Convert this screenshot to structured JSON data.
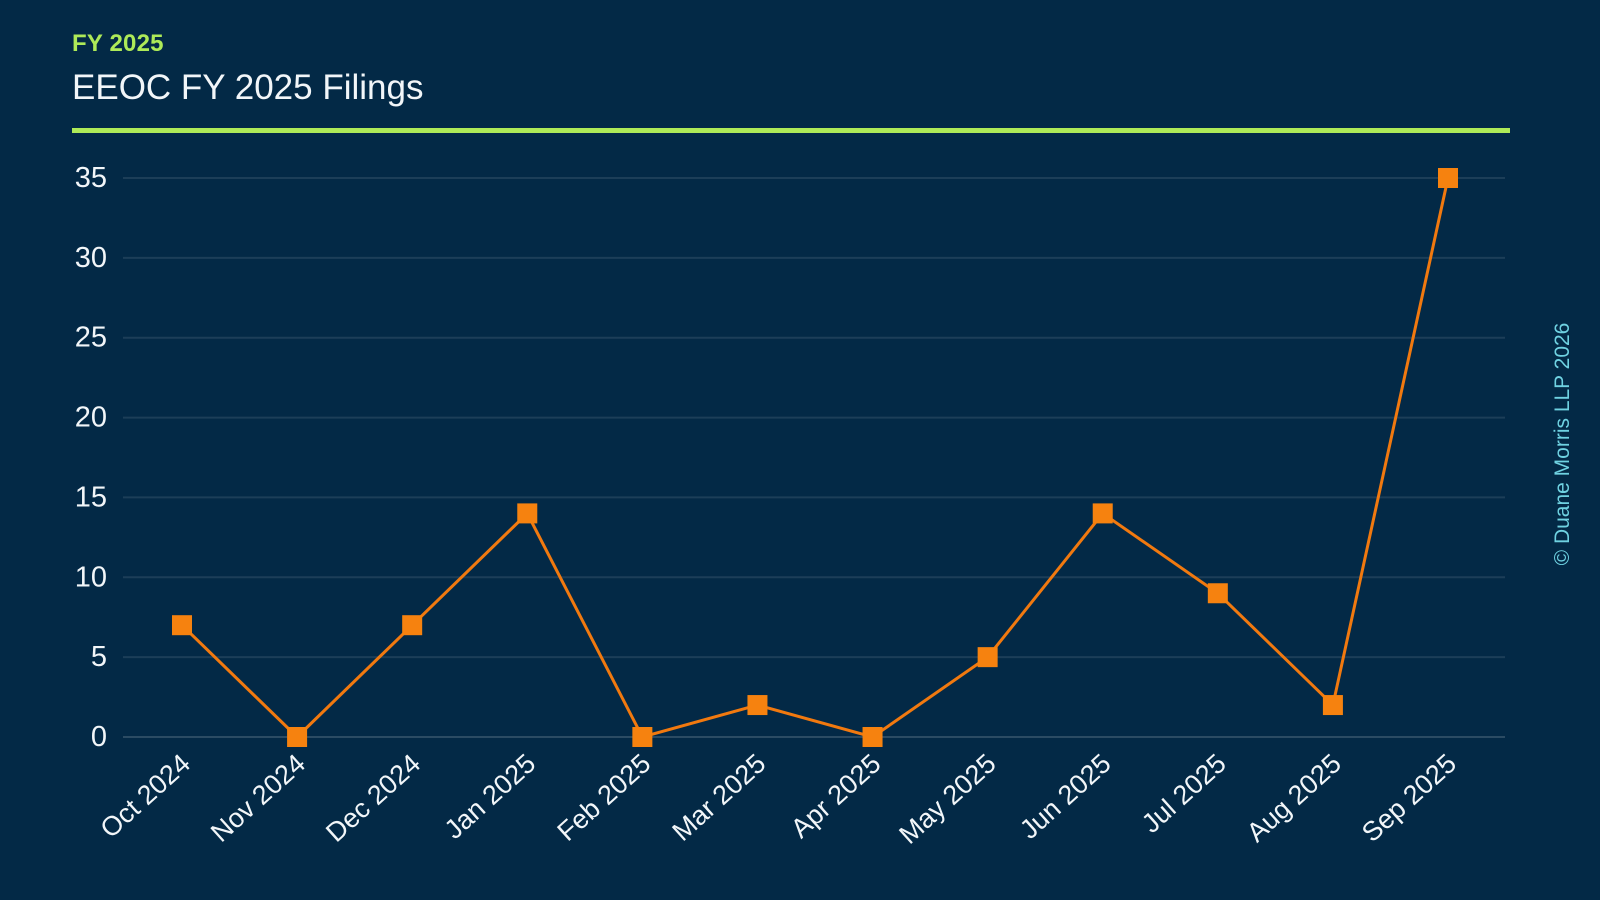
{
  "header": {
    "eyebrow": "FY 2025",
    "title": "EEOC FY 2025 Filings"
  },
  "watermark": "© Duane Morris LLP 2026",
  "colors": {
    "background": "#032946",
    "accent_green": "#aeea58",
    "line_orange": "#f1790f",
    "marker_orange": "#f6820f",
    "text_white": "#f2f6f9",
    "gridline": "rgba(255,255,255,0.10)",
    "zero_line": "rgba(255,255,255,0.16)",
    "watermark_cyan": "#6fd2e2"
  },
  "chart_data": {
    "type": "line",
    "title": "EEOC FY 2025 Filings",
    "categories": [
      "Oct 2024",
      "Nov 2024",
      "Dec 2024",
      "Jan 2025",
      "Feb 2025",
      "Mar 2025",
      "Apr 2025",
      "May 2025",
      "Jun 2025",
      "Jul 2025",
      "Aug 2025",
      "Sep 2025"
    ],
    "series": [
      {
        "name": "EEOC FY 2025 Filings",
        "values": [
          7,
          0,
          7,
          14,
          0,
          2,
          0,
          5,
          14,
          9,
          2,
          35
        ]
      }
    ],
    "xlabel": "",
    "ylabel": "",
    "ylim": [
      0,
      35
    ],
    "yticks": [
      0,
      5,
      10,
      15,
      20,
      25,
      30,
      35
    ],
    "grid": true,
    "marker": "square",
    "legend_position": "none"
  }
}
